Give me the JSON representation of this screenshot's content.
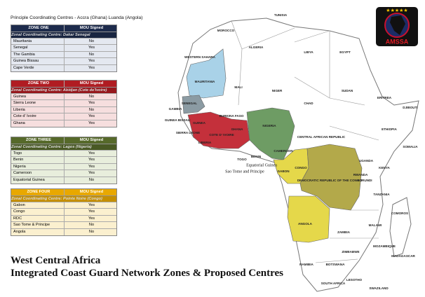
{
  "header": {
    "title": "Principle Coordinating Centres - Accra (Ghana) Luanda (Angola)"
  },
  "zones": [
    {
      "name": "ZONE ONE",
      "column": "MOU Signed",
      "centre": "Zonal Coordinating Centre: Dakar Senegal",
      "rows": [
        [
          "Mauritania",
          "No"
        ],
        [
          "Senegal",
          "Yes"
        ],
        [
          "The Gambia",
          "No"
        ],
        [
          "Guinea Bissau",
          "Yes"
        ],
        [
          "Cape Verde",
          "Yes"
        ]
      ]
    },
    {
      "name": "ZONE TWO",
      "column": "MOU Signed",
      "centre": "Zonal Coordinating Centre: Abidjan (Cote de'Ivoire)",
      "rows": [
        [
          "Guinea",
          "No"
        ],
        [
          "Sierra Leone",
          "Yes"
        ],
        [
          "Liberia",
          "No"
        ],
        [
          "Cote d' Ivoire",
          "Yes"
        ],
        [
          "Ghana",
          "Yes"
        ]
      ]
    },
    {
      "name": "ZONE THREE",
      "column": "MOU Signed",
      "centre": "Zonal Coordinating Centre: Lagos (Nigeria)",
      "rows": [
        [
          "Togo",
          "Yes"
        ],
        [
          "Benin",
          "Yes"
        ],
        [
          "Nigeria",
          "Yes"
        ],
        [
          "Cameroon",
          "Yes"
        ],
        [
          "Equatorial Guinea",
          "No"
        ]
      ]
    },
    {
      "name": "ZONE FOUR",
      "column": "MOU Signed",
      "centre": "Zonal Coordinating Centre: Pointe Noire (Congo)",
      "rows": [
        [
          "Gabon",
          "Yes"
        ],
        [
          "Congo",
          "Yes"
        ],
        [
          "RDC",
          "Yes"
        ],
        [
          "Sao Tome & Principe",
          "No"
        ],
        [
          "Angola",
          "No"
        ]
      ]
    }
  ],
  "map": {
    "labels": [
      "MOROCCO",
      "TUNISIA",
      "ALGERIA",
      "LIBYA",
      "EGYPT",
      "WESTERN SAHARA",
      "MAURITANIA",
      "MALI",
      "NIGER",
      "CHAD",
      "SUDAN",
      "ERITREA",
      "DJIBOUTI",
      "ETHIOPIA",
      "SOMALIA",
      "SENEGAL",
      "GAMBIA",
      "GUINEA BISSAU",
      "GUINEA",
      "SIERRA LEONE",
      "LIBERIA",
      "COTE D' IVOIRE",
      "GHANA",
      "BURKINA FASO",
      "NIGERIA",
      "CAMEROON",
      "CENTRAL AFRICAN REPUBLIC",
      "TOGO",
      "BENIN",
      "Equatorial Guinea",
      "Sao Tome and Principe",
      "GABON",
      "CONGO",
      "DEMOCRATIC REPUBLIC OF THE CONGO",
      "UGANDA",
      "KENYA",
      "RWANDA",
      "BURUNDI",
      "TANZANIA",
      "ANGOLA",
      "ZAMBIA",
      "MALAWI",
      "MOZAMBIQUE",
      "ZIMBABWE",
      "NAMIBIA",
      "BOTSWANA",
      "SOUTH AFRICA",
      "LESOTHO",
      "SWAZILAND",
      "MADAGASCAR",
      "COMOROS"
    ]
  },
  "logo": {
    "text": "AMSSA"
  },
  "footer": {
    "line1": "West Central Africa",
    "line2": "Integrated Coast Guard Network Zones & Proposed Centres"
  }
}
